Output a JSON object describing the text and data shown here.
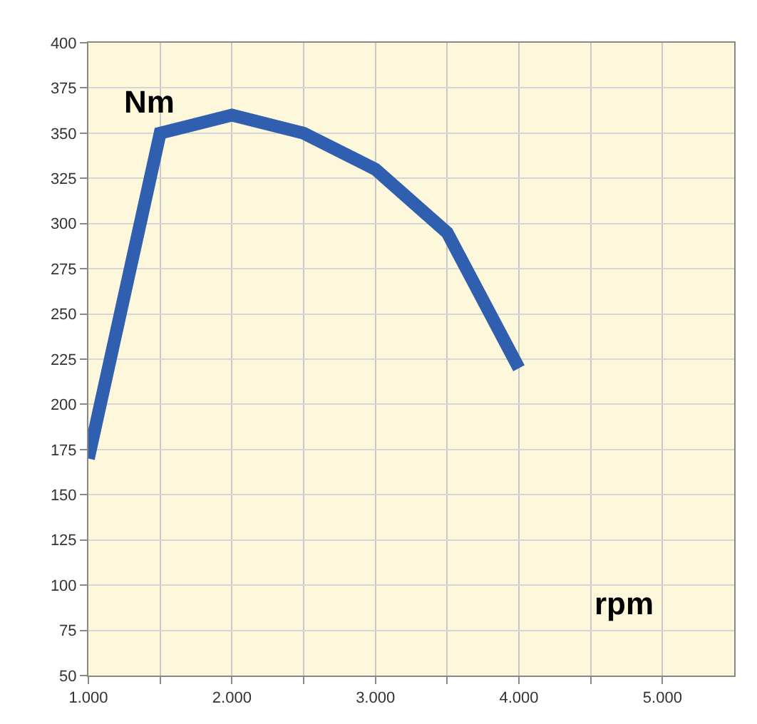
{
  "chart_data": {
    "type": "line",
    "xlabel": "rpm",
    "ylabel": "Nm",
    "x": [
      1000,
      1500,
      2000,
      2500,
      3000,
      3500,
      4000
    ],
    "series": [
      {
        "color": "#2f5fae",
        "values": [
          170,
          350,
          360,
          350,
          330,
          295,
          220
        ]
      }
    ],
    "xlim": [
      1000,
      5500
    ],
    "ylim": [
      50,
      400
    ],
    "xticks": [
      {
        "value": 1000,
        "label": "1.000"
      },
      {
        "value": 1500,
        "label": null
      },
      {
        "value": 2000,
        "label": "2.000"
      },
      {
        "value": 2500,
        "label": null
      },
      {
        "value": 3000,
        "label": "3.000"
      },
      {
        "value": 3500,
        "label": null
      },
      {
        "value": 4000,
        "label": "4.000"
      },
      {
        "value": 4500,
        "label": null
      },
      {
        "value": 5000,
        "label": "5.000"
      }
    ],
    "yticks": [
      50,
      75,
      100,
      125,
      150,
      175,
      200,
      225,
      250,
      275,
      300,
      325,
      350,
      375,
      400
    ],
    "grid": true,
    "marker": "none",
    "line_style": "solid"
  }
}
